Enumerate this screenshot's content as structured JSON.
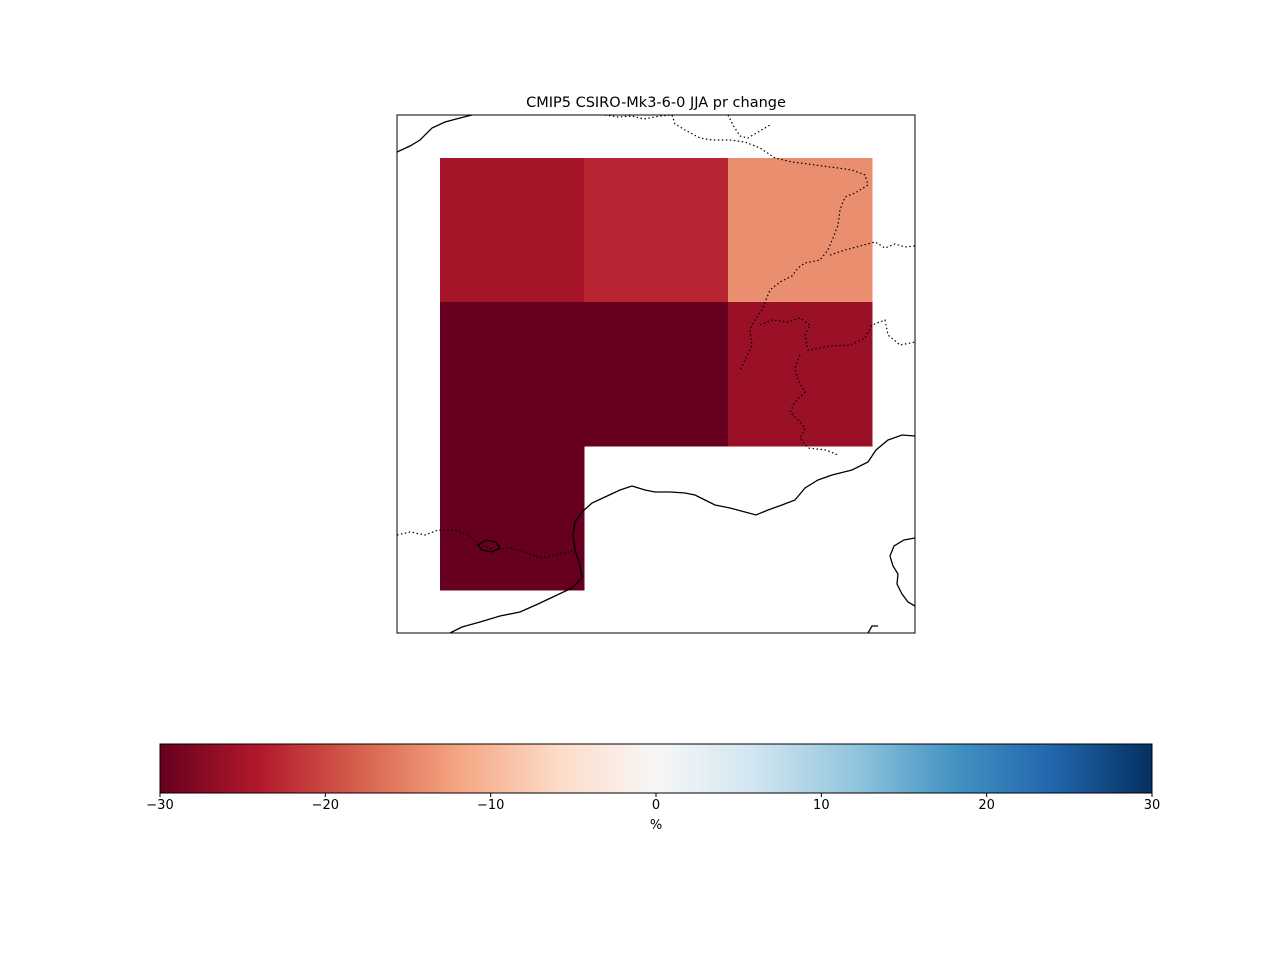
{
  "title": "CMIP5 CSIRO-Mk3-6-0 JJA pr change",
  "chart_data": {
    "type": "heatmap",
    "title": "CMIP5 CSIRO-Mk3-6-0 JJA pr change",
    "grid": [
      [
        -25,
        -23,
        -14
      ],
      [
        -30,
        -30,
        -26
      ],
      [
        -30,
        null,
        null
      ]
    ],
    "colorbar": {
      "label": "%",
      "range": [
        -30,
        30
      ],
      "ticks": [
        -30,
        -20,
        -10,
        0,
        10,
        20,
        30
      ],
      "tick_labels": [
        "−30",
        "−20",
        "−10",
        "0",
        "10",
        "20",
        "30"
      ],
      "colormap": "RdBu",
      "stops": [
        "#67001f",
        "#b2182b",
        "#d6604d",
        "#f4a582",
        "#fddbc7",
        "#f7f7f7",
        "#d1e5f0",
        "#92c5de",
        "#4393c3",
        "#2166ac",
        "#053061"
      ]
    },
    "map_features": [
      "coastlines",
      "country-borders"
    ],
    "grid_lines": false
  }
}
